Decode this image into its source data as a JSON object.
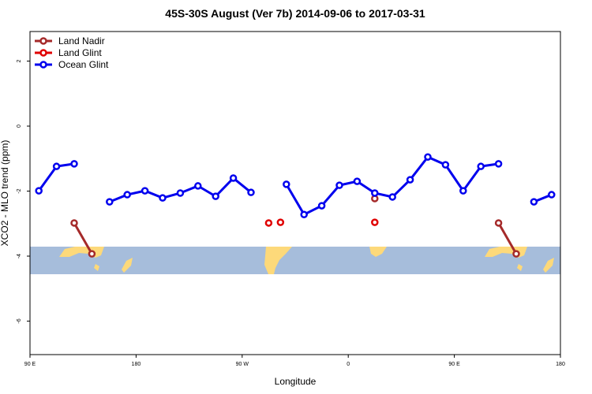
{
  "chart_data": {
    "type": "line",
    "title": "45S-30S August (Ver 7b)   2014-09-06 to 2017-03-31",
    "x_label": "Longitude",
    "y_label": "XCO2 - MLO trend (ppm)",
    "xlim": [
      90,
      540
    ],
    "xticks": [
      {
        "value": 90,
        "label": "90 E"
      },
      {
        "value": 180,
        "label": "180"
      },
      {
        "value": 270,
        "label": "90 W"
      },
      {
        "value": 360,
        "label": "0"
      },
      {
        "value": 450,
        "label": "90 E"
      },
      {
        "value": 540,
        "label": "180"
      }
    ],
    "ylim": [
      -7.03,
      2.91
    ],
    "yticks": [
      2,
      0,
      -2,
      -4,
      -6
    ],
    "legend": "top-left",
    "series": [
      {
        "name": "Land Nadir",
        "color": "#a52a2a",
        "x": [
          127.5,
          142.5,
          367.5,
          382.5,
          472.5,
          487.5,
          502.5
        ],
        "values": [
          -2.98,
          -3.93,
          null,
          -2.23,
          null,
          -2.98,
          -3.93
        ]
      },
      {
        "name": "Land Glint",
        "color": "#e00000",
        "x": [
          292.5,
          297.5,
          302.5,
          342.5,
          382.5
        ],
        "values": [
          -2.98,
          null,
          -2.96,
          null,
          -2.96
        ]
      },
      {
        "name": "Ocean Glint",
        "color": "#0000ee",
        "x": [
          97.5,
          112.5,
          127.5,
          142.5,
          157.5,
          172.5,
          187.5,
          202.5,
          217.5,
          232.5,
          247.5,
          262.5,
          277.5,
          292.5,
          307.5,
          322.5,
          337.5,
          352.5,
          367.5,
          382.5,
          397.5,
          412.5,
          427.5,
          442.5,
          457.5,
          472.5,
          487.5,
          502.5,
          517.5,
          532.5
        ],
        "values": [
          -1.99,
          -1.24,
          -1.16,
          null,
          -2.33,
          -2.11,
          -1.99,
          -2.21,
          -2.06,
          -1.84,
          -2.16,
          -1.6,
          -2.04,
          null,
          -1.79,
          -2.72,
          -2.45,
          -1.82,
          -1.7,
          -2.06,
          -2.18,
          -1.65,
          -0.95,
          -1.19,
          -1.99,
          -1.24,
          -1.16,
          null,
          -2.33,
          -2.11
        ]
      }
    ]
  }
}
